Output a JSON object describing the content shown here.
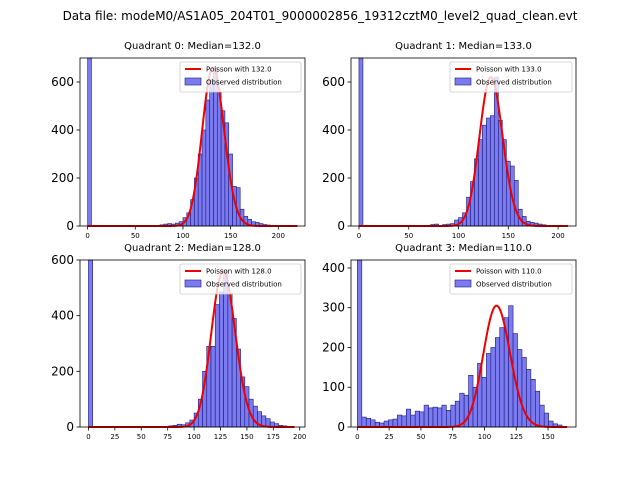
{
  "figure": {
    "suptitle": "Data file: modeM0/AS1A05_204T01_9000002856_19312cztM0_level2_quad_clean.evt"
  },
  "legend": {
    "poisson_prefix": "Poisson with ",
    "observed_label": "Observed distribution"
  },
  "colors": {
    "bar_fill": "#7b7bef",
    "bar_edge": "#1a1a80",
    "curve": "#ee0000"
  },
  "chart_data": [
    {
      "type": "bar",
      "title": "Quadrant 0: Median=132.0",
      "median": 132.0,
      "legend_poisson": "Poisson with 132.0",
      "xlim": [
        -8,
        228
      ],
      "ylim": [
        0,
        700
      ],
      "xticks": [
        0,
        50,
        100,
        150,
        200
      ],
      "yticks": [
        0,
        200,
        400,
        600
      ],
      "bin_width": 4,
      "bins": [
        [
          0,
          700
        ],
        [
          76,
          5
        ],
        [
          80,
          8
        ],
        [
          84,
          10
        ],
        [
          88,
          8
        ],
        [
          92,
          12
        ],
        [
          96,
          18
        ],
        [
          100,
          35
        ],
        [
          104,
          55
        ],
        [
          108,
          110
        ],
        [
          112,
          200
        ],
        [
          116,
          300
        ],
        [
          120,
          400
        ],
        [
          124,
          525
        ],
        [
          128,
          610
        ],
        [
          132,
          660
        ],
        [
          136,
          560
        ],
        [
          140,
          480
        ],
        [
          144,
          430
        ],
        [
          148,
          300
        ],
        [
          152,
          165
        ],
        [
          156,
          160
        ],
        [
          160,
          70
        ],
        [
          164,
          40
        ],
        [
          168,
          28
        ],
        [
          172,
          18
        ],
        [
          176,
          15
        ],
        [
          180,
          10
        ],
        [
          184,
          6
        ],
        [
          188,
          4
        ]
      ],
      "curve": {
        "mean": 132.0,
        "x_start": 0,
        "x_end": 220
      }
    },
    {
      "type": "bar",
      "title": "Quadrant 1: Median=133.0",
      "median": 133.0,
      "legend_poisson": "Poisson with 133.0",
      "xlim": [
        -8,
        218
      ],
      "ylim": [
        0,
        700
      ],
      "xticks": [
        0,
        50,
        100,
        150,
        200
      ],
      "yticks": [
        0,
        200,
        400,
        600
      ],
      "bin_width": 4,
      "bins": [
        [
          0,
          700
        ],
        [
          72,
          6
        ],
        [
          76,
          8
        ],
        [
          84,
          6
        ],
        [
          88,
          8
        ],
        [
          92,
          10
        ],
        [
          96,
          25
        ],
        [
          100,
          35
        ],
        [
          104,
          55
        ],
        [
          108,
          120
        ],
        [
          112,
          185
        ],
        [
          116,
          280
        ],
        [
          120,
          360
        ],
        [
          124,
          420
        ],
        [
          128,
          450
        ],
        [
          132,
          460
        ],
        [
          136,
          620
        ],
        [
          140,
          440
        ],
        [
          144,
          360
        ],
        [
          148,
          270
        ],
        [
          152,
          250
        ],
        [
          156,
          190
        ],
        [
          160,
          70
        ],
        [
          164,
          40
        ],
        [
          168,
          20
        ],
        [
          172,
          15
        ],
        [
          176,
          12
        ],
        [
          180,
          8
        ],
        [
          184,
          5
        ]
      ],
      "curve": {
        "mean": 133.0,
        "x_start": 0,
        "x_end": 210
      }
    },
    {
      "type": "bar",
      "title": "Quadrant 2: Median=128.0",
      "median": 128.0,
      "legend_poisson": "Poisson with 128.0",
      "xlim": [
        -8,
        205
      ],
      "ylim": [
        0,
        600
      ],
      "xticks": [
        0,
        25,
        50,
        75,
        100,
        125,
        150,
        175,
        200
      ],
      "yticks": [
        0,
        200,
        400,
        600
      ],
      "bin_width": 4,
      "bins": [
        [
          0,
          600
        ],
        [
          76,
          4
        ],
        [
          80,
          6
        ],
        [
          84,
          10
        ],
        [
          88,
          8
        ],
        [
          92,
          15
        ],
        [
          96,
          25
        ],
        [
          100,
          50
        ],
        [
          104,
          100
        ],
        [
          108,
          200
        ],
        [
          112,
          290
        ],
        [
          116,
          290
        ],
        [
          120,
          440
        ],
        [
          124,
          485
        ],
        [
          128,
          560
        ],
        [
          132,
          480
        ],
        [
          136,
          390
        ],
        [
          140,
          280
        ],
        [
          144,
          180
        ],
        [
          148,
          145
        ],
        [
          152,
          100
        ],
        [
          156,
          75
        ],
        [
          160,
          55
        ],
        [
          164,
          40
        ],
        [
          168,
          30
        ],
        [
          172,
          18
        ],
        [
          176,
          12
        ],
        [
          180,
          6
        ],
        [
          184,
          4
        ]
      ],
      "curve": {
        "mean": 128.0,
        "x_start": 0,
        "x_end": 195
      }
    },
    {
      "type": "bar",
      "title": "Quadrant 3: Median=110.0",
      "median": 110.0,
      "legend_poisson": "Poisson with 110.0",
      "xlim": [
        -5,
        172
      ],
      "ylim": [
        0,
        420
      ],
      "xticks": [
        0,
        25,
        50,
        75,
        100,
        125,
        150
      ],
      "yticks": [
        0,
        100,
        200,
        300,
        400
      ],
      "bin_width": 3.5,
      "bins": [
        [
          0,
          420
        ],
        [
          3.5,
          25
        ],
        [
          7,
          22
        ],
        [
          10.5,
          18
        ],
        [
          14,
          12
        ],
        [
          17.5,
          10
        ],
        [
          21,
          15
        ],
        [
          24.5,
          18
        ],
        [
          28,
          20
        ],
        [
          31.5,
          30
        ],
        [
          35,
          28
        ],
        [
          38.5,
          45
        ],
        [
          42,
          30
        ],
        [
          45.5,
          40
        ],
        [
          49,
          38
        ],
        [
          52.5,
          55
        ],
        [
          56,
          48
        ],
        [
          59.5,
          50
        ],
        [
          63,
          48
        ],
        [
          66.5,
          55
        ],
        [
          70,
          42
        ],
        [
          73.5,
          55
        ],
        [
          77,
          65
        ],
        [
          80.5,
          85
        ],
        [
          84,
          80
        ],
        [
          87.5,
          130
        ],
        [
          91,
          100
        ],
        [
          94.5,
          160
        ],
        [
          98,
          125
        ],
        [
          101.5,
          185
        ],
        [
          105,
          200
        ],
        [
          108.5,
          225
        ],
        [
          112,
          250
        ],
        [
          115.5,
          275
        ],
        [
          119,
          305
        ],
        [
          122.5,
          235
        ],
        [
          126,
          195
        ],
        [
          129.5,
          175
        ],
        [
          133,
          145
        ],
        [
          136.5,
          120
        ],
        [
          140,
          90
        ],
        [
          143.5,
          55
        ],
        [
          147,
          35
        ],
        [
          150.5,
          15
        ],
        [
          154,
          8
        ],
        [
          157.5,
          5
        ]
      ],
      "curve": {
        "mean": 110.0,
        "x_start": 0,
        "x_end": 165
      }
    }
  ]
}
